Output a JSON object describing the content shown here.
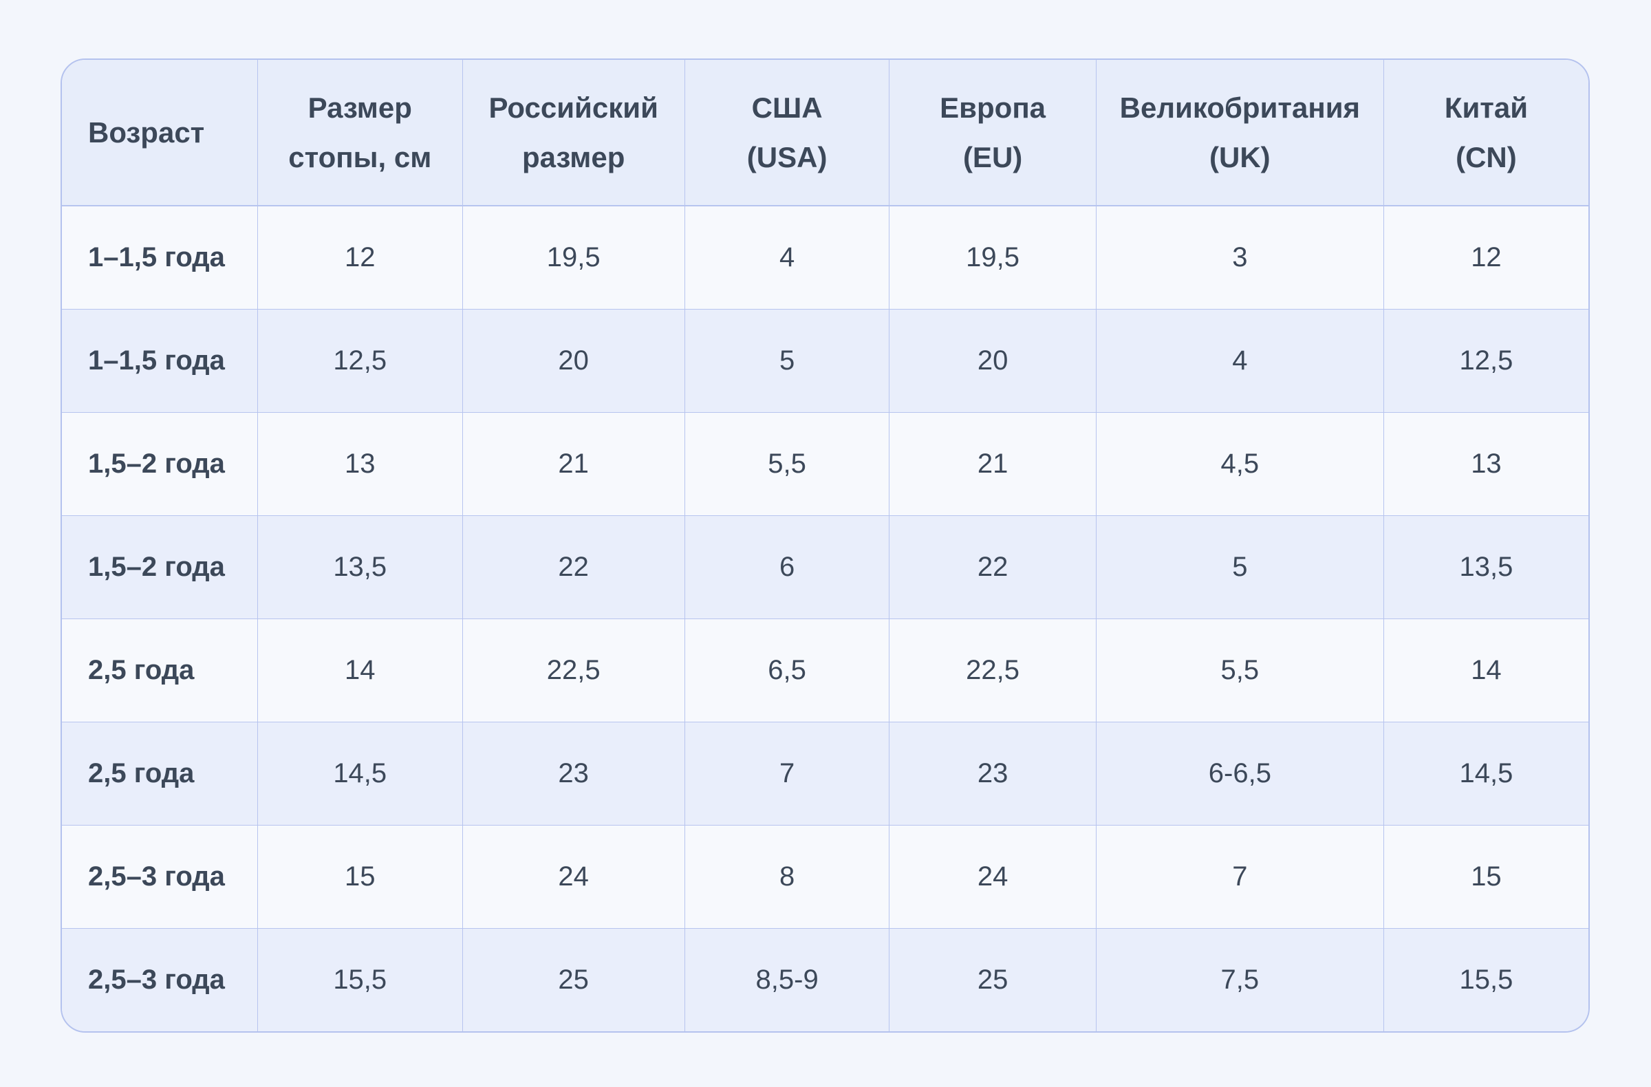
{
  "colors": {
    "page_bg": "#F3F6FC",
    "header_bg": "#E7EDFA",
    "row_odd": "#F7F9FD",
    "row_even": "#E9EEFB",
    "border": "#B7C4EF",
    "border_outer": "#B4C2EE",
    "text": "#3C4859"
  },
  "table": {
    "columns": [
      {
        "key": "age",
        "lines": [
          "Возраст"
        ]
      },
      {
        "key": "foot-size-cm",
        "lines": [
          "Размер",
          "стопы, см"
        ]
      },
      {
        "key": "russian-size",
        "lines": [
          "Российский",
          "размер"
        ]
      },
      {
        "key": "usa",
        "lines": [
          "США",
          "(USA)"
        ]
      },
      {
        "key": "eu",
        "lines": [
          "Европа",
          "(EU)"
        ]
      },
      {
        "key": "uk",
        "lines": [
          "Великобритания",
          "(UK)"
        ]
      },
      {
        "key": "cn",
        "lines": [
          "Китай",
          "(CN)"
        ]
      }
    ],
    "rows": [
      [
        "1–1,5 года",
        "12",
        "19,5",
        "4",
        "19,5",
        "3",
        "12"
      ],
      [
        "1–1,5 года",
        "12,5",
        "20",
        "5",
        "20",
        "4",
        "12,5"
      ],
      [
        "1,5–2 года",
        "13",
        "21",
        "5,5",
        "21",
        "4,5",
        "13"
      ],
      [
        "1,5–2 года",
        "13,5",
        "22",
        "6",
        "22",
        "5",
        "13,5"
      ],
      [
        "2,5 года",
        "14",
        "22,5",
        "6,5",
        "22,5",
        "5,5",
        "14"
      ],
      [
        "2,5 года",
        "14,5",
        "23",
        "7",
        "23",
        "6-6,5",
        "14,5"
      ],
      [
        "2,5–3 года",
        "15",
        "24",
        "8",
        "24",
        "7",
        "15"
      ],
      [
        "2,5–3 года",
        "15,5",
        "25",
        "8,5-9",
        "25",
        "7,5",
        "15,5"
      ]
    ]
  },
  "chart_data": {
    "type": "table",
    "columns": [
      "Возраст",
      "Размер стопы, см",
      "Российский размер",
      "США (USA)",
      "Европа (EU)",
      "Великобритания (UK)",
      "Китай (CN)"
    ],
    "rows": [
      [
        "1–1,5 года",
        "12",
        "19,5",
        "4",
        "19,5",
        "3",
        "12"
      ],
      [
        "1–1,5 года",
        "12,5",
        "20",
        "5",
        "20",
        "4",
        "12,5"
      ],
      [
        "1,5–2 года",
        "13",
        "21",
        "5,5",
        "21",
        "4,5",
        "13"
      ],
      [
        "1,5–2 года",
        "13,5",
        "22",
        "6",
        "22",
        "5",
        "13,5"
      ],
      [
        "2,5 года",
        "14",
        "22,5",
        "6,5",
        "22,5",
        "5,5",
        "14"
      ],
      [
        "2,5 года",
        "14,5",
        "23",
        "7",
        "23",
        "6-6,5",
        "14,5"
      ],
      [
        "2,5–3 года",
        "15",
        "24",
        "8",
        "24",
        "7",
        "15"
      ],
      [
        "2,5–3 года",
        "15,5",
        "25",
        "8,5-9",
        "25",
        "7,5",
        "15,5"
      ]
    ],
    "layout_hints": {
      "header_row": true,
      "zebra_striping": true,
      "first_column_bold": true,
      "grid": true
    }
  }
}
